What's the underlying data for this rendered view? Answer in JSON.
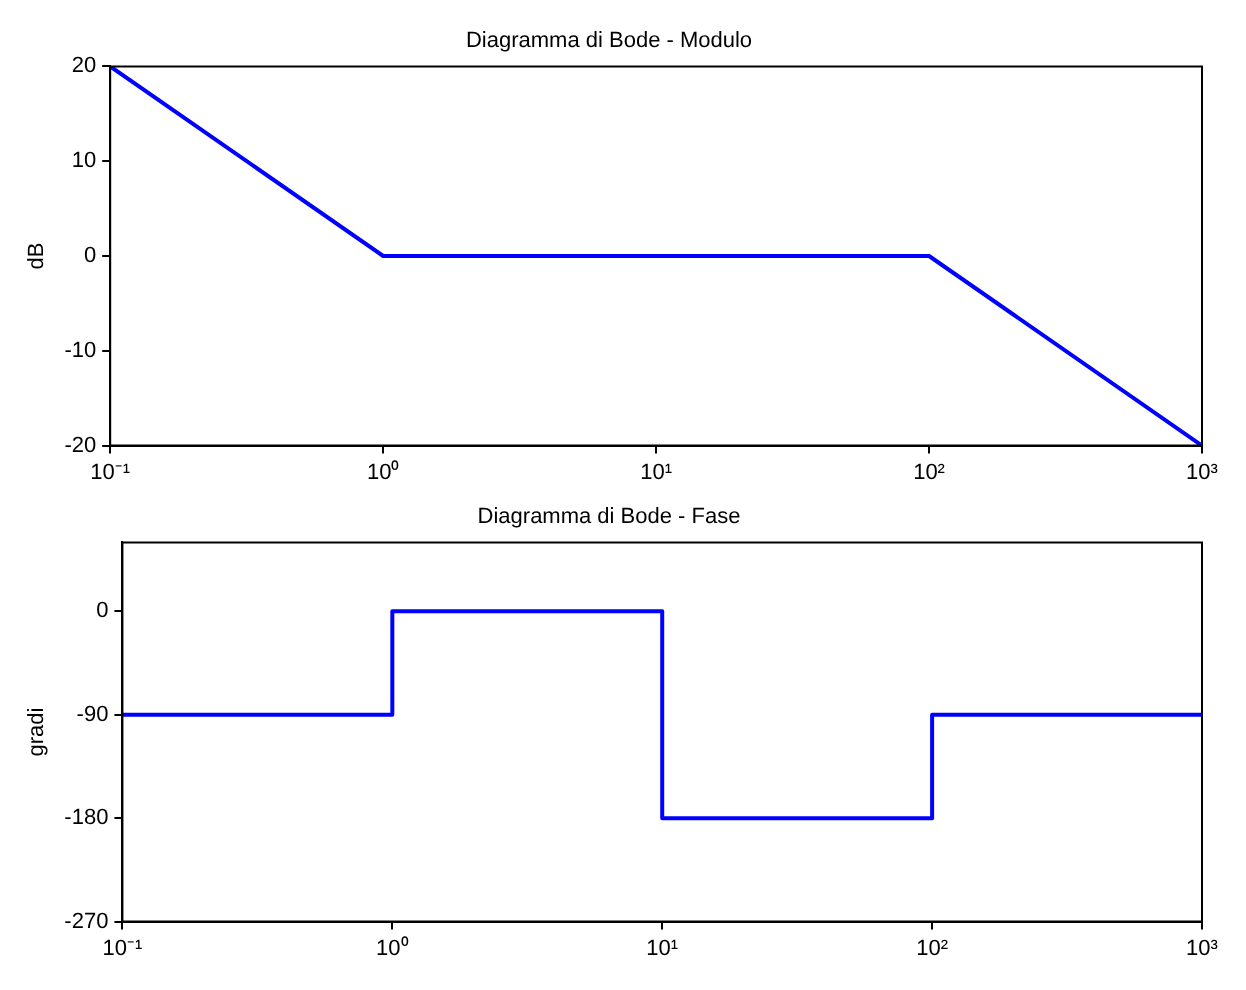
{
  "chart_data": [
    {
      "type": "line",
      "title": "Diagramma di Bode - Modulo",
      "ylabel": "dB",
      "log": "x",
      "grid": false,
      "legend": false,
      "marker": "none",
      "line_style": "solid",
      "xlim": [
        0.1,
        1000
      ],
      "xticks": [
        {
          "value": 0.1,
          "label": "10⁻¹"
        },
        {
          "value": 1,
          "label": "10⁰"
        },
        {
          "value": 10,
          "label": "10¹"
        },
        {
          "value": 100,
          "label": "10²"
        },
        {
          "value": 1000,
          "label": "10³"
        }
      ],
      "ylim": [
        -20,
        20
      ],
      "yticks": [
        -20,
        -10,
        0,
        10,
        20
      ],
      "series": [
        {
          "color": "#0000ff",
          "x": [
            0.1,
            1,
            100,
            1000
          ],
          "values": [
            20,
            0,
            0,
            -20
          ]
        }
      ]
    },
    {
      "type": "step",
      "title": "Diagramma di Bode - Fase",
      "ylabel": "gradi",
      "log": "x",
      "grid": false,
      "legend": false,
      "marker": "none",
      "line_style": "solid",
      "xlim": [
        0.1,
        1000
      ],
      "xticks": [
        {
          "value": 0.1,
          "label": "10⁻¹"
        },
        {
          "value": 1,
          "label": "10⁰"
        },
        {
          "value": 10,
          "label": "10¹"
        },
        {
          "value": 100,
          "label": "10²"
        },
        {
          "value": 1000,
          "label": "10³"
        }
      ],
      "ylim": [
        -270,
        60
      ],
      "yticks": [
        -270,
        -180,
        -90,
        0
      ],
      "series": [
        {
          "color": "#0000ff",
          "x": [
            0.1,
            1,
            10,
            100,
            1000
          ],
          "values": [
            -90,
            0,
            -180,
            -90,
            -90
          ]
        }
      ]
    }
  ]
}
